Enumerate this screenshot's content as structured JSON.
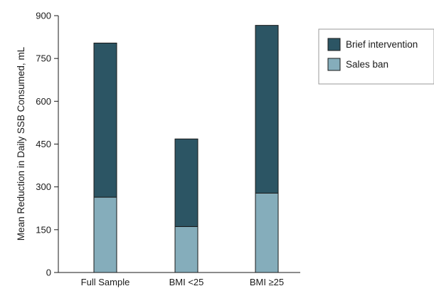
{
  "chart_data": {
    "type": "bar",
    "stacked": true,
    "categories": [
      "Full Sample",
      "BMI <25",
      "BMI ≥25"
    ],
    "series": [
      {
        "name": "Brief intervention",
        "values": [
          540,
          307,
          588
        ],
        "color": "#2c5564"
      },
      {
        "name": "Sales ban",
        "values": [
          264,
          161,
          278
        ],
        "color": "#85adbb"
      }
    ],
    "ylabel": "Mean Reduction in Daily SSB Consumed, mL",
    "xlabel": "",
    "ylim": [
      0,
      900
    ],
    "yticks": [
      0,
      150,
      300,
      450,
      600,
      750,
      900
    ],
    "grid": false,
    "legend_placement": "top-right"
  }
}
